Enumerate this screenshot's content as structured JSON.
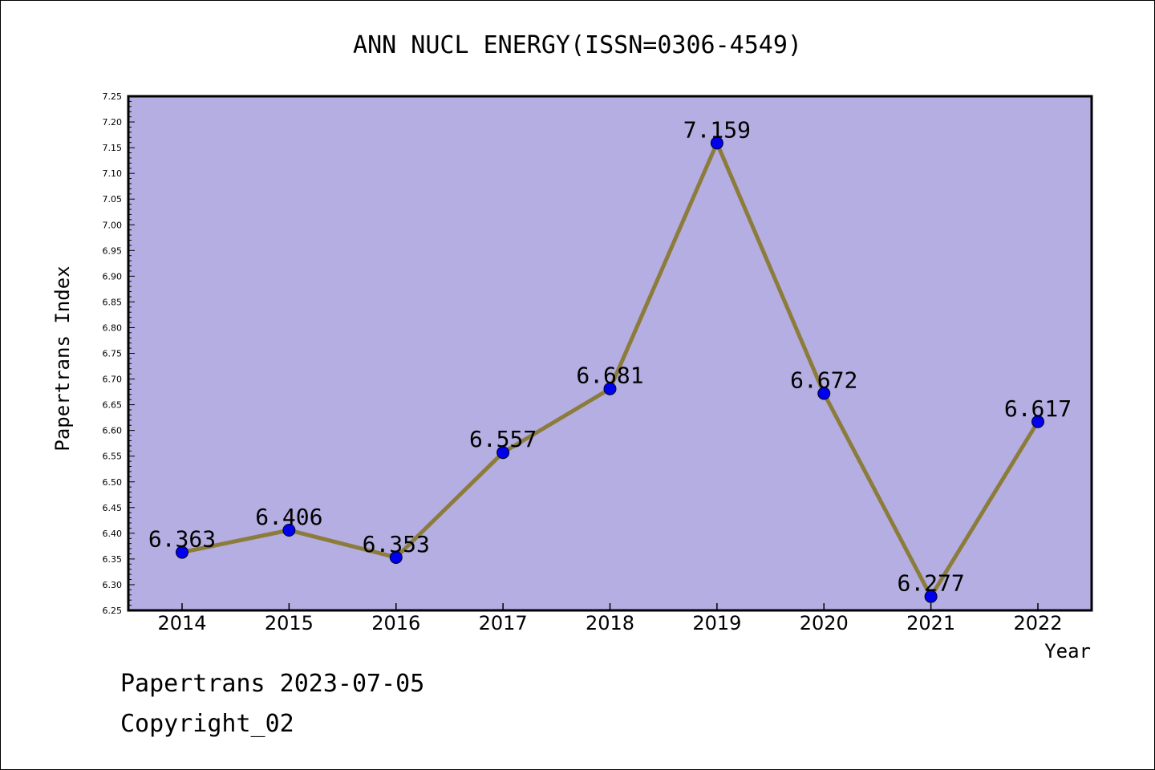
{
  "chart_data": {
    "type": "line",
    "title": "ANN NUCL ENERGY(ISSN=0306-4549)",
    "xlabel": "Year",
    "ylabel": "Papertrans Index",
    "x": [
      "2014",
      "2015",
      "2016",
      "2017",
      "2018",
      "2019",
      "2020",
      "2021",
      "2022"
    ],
    "values": [
      6.363,
      6.406,
      6.353,
      6.557,
      6.681,
      7.159,
      6.672,
      6.277,
      6.617
    ],
    "data_labels": [
      "6.363",
      "6.406",
      "6.353",
      "6.557",
      "6.681",
      "7.159",
      "6.672",
      "6.277",
      "6.617"
    ],
    "ylim": [
      6.25,
      7.25
    ],
    "yticks": [
      "6.25",
      "6.30",
      "6.35",
      "6.40",
      "6.45",
      "6.50",
      "6.55",
      "6.60",
      "6.65",
      "6.70",
      "6.75",
      "6.80",
      "6.85",
      "6.90",
      "6.95",
      "7.00",
      "7.05",
      "7.10",
      "7.15",
      "7.20",
      "7.25"
    ],
    "grid": false,
    "legend": "none",
    "colors": {
      "plot_bg": "#b4aee2",
      "line": "#8c7c3c",
      "marker": "#0000ee"
    }
  },
  "footer": {
    "line1": "Papertrans 2023-07-05",
    "line2": "Copyright_02"
  }
}
